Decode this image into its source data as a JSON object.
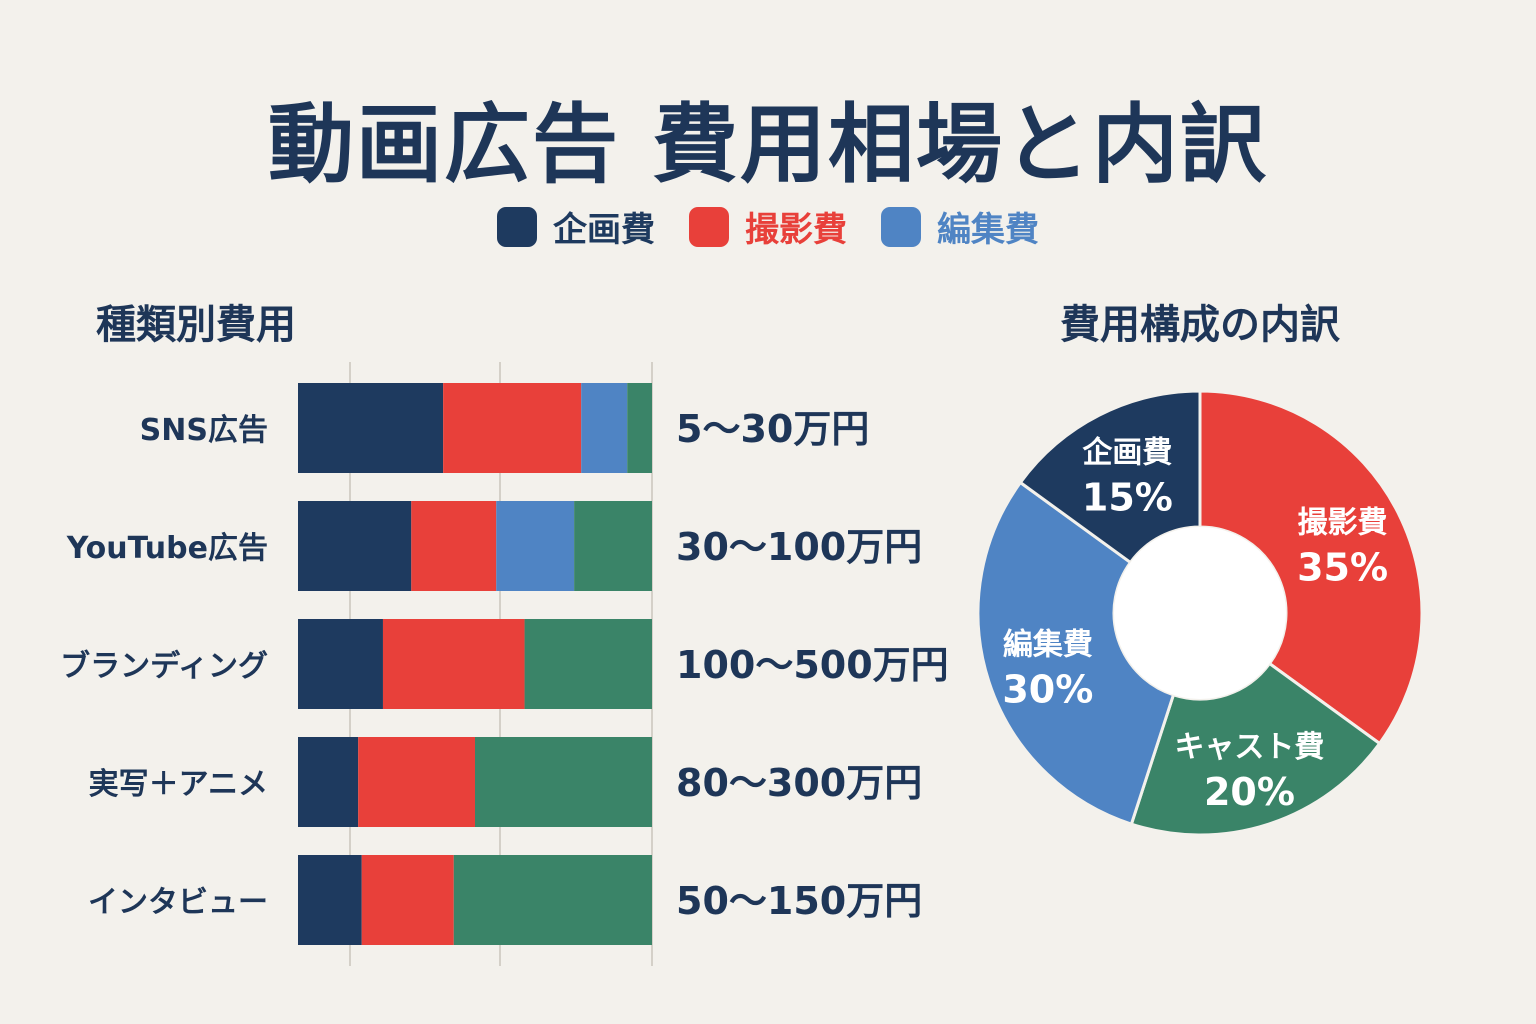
{
  "title": "動画広告 費用相場と内訳",
  "legend": [
    {
      "label": "企画費",
      "color": "#1e3a5f"
    },
    {
      "label": "撮影費",
      "color": "#e8403a"
    },
    {
      "label": "編集費",
      "color": "#4f84c4"
    }
  ],
  "chart_data": [
    {
      "type": "bar",
      "title": "種類別費用",
      "orientation": "horizontal",
      "stacked": true,
      "categories": [
        "SNS広告",
        "YouTube広告",
        "ブランディング",
        "実写＋アニメ",
        "インタビュー"
      ],
      "price_labels": [
        "5〜30万円",
        "30〜100万円",
        "100〜500万円",
        "80〜300万円",
        "50〜150万円"
      ],
      "series": [
        {
          "name": "企画費",
          "color": "#1e3a5f",
          "values": [
            41,
            32,
            24,
            17,
            18
          ]
        },
        {
          "name": "撮影費",
          "color": "#e8403a",
          "values": [
            39,
            24,
            40,
            33,
            26
          ]
        },
        {
          "name": "編集費",
          "color": "#4f84c4",
          "values": [
            13,
            22,
            0,
            0,
            0
          ]
        },
        {
          "color": "#3a8468",
          "values": [
            7,
            22,
            36,
            50,
            56
          ]
        }
      ],
      "xlim": [
        0,
        100
      ],
      "grid": true
    },
    {
      "type": "pie",
      "title": "費用構成の内訳",
      "donut": true,
      "slices": [
        {
          "label": "撮影費",
          "value": 35,
          "display": "35%",
          "color": "#e8403a"
        },
        {
          "label": "キャスト費",
          "value": 20,
          "display": "20%",
          "color": "#3a8468"
        },
        {
          "label": "編集費",
          "value": 30,
          "display": "30%",
          "color": "#4f84c4"
        },
        {
          "label": "企画費",
          "value": 15,
          "display": "15%",
          "color": "#1e3a5f"
        }
      ]
    }
  ]
}
